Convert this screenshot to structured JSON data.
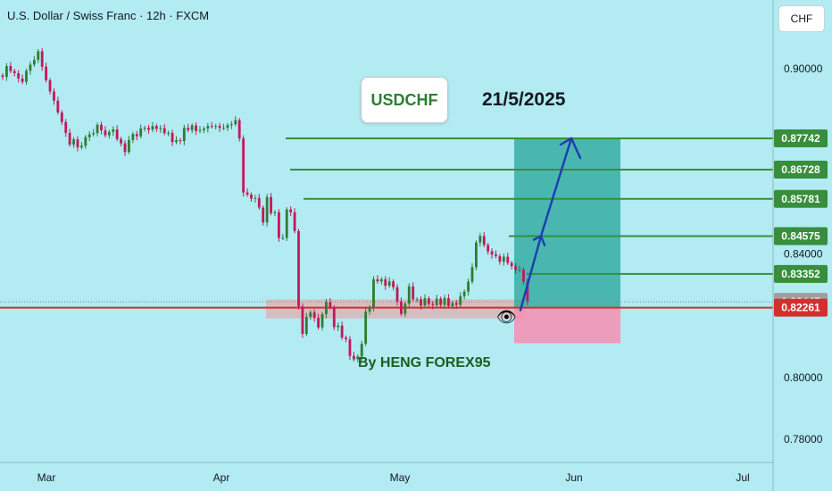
{
  "header": {
    "title": "U.S. Dollar / Swiss Franc · 12h · FXCM"
  },
  "currency_label": "CHF",
  "annotations": {
    "symbol_box": "USDCHF",
    "date": "21/5/2025",
    "author": "By HENG FOREX95",
    "eye_icon": "👁"
  },
  "colors": {
    "background": "#b2ebf2",
    "bull": "#2e7d32",
    "bear": "#c2185b",
    "target_line": "#388e3c",
    "price_line": "#d32f2f",
    "profit_zone": "#26a69a",
    "loss_zone": "#f48fb1",
    "arrow": "#1e40af",
    "current_badge": "#9e9e9e"
  },
  "chart_data": {
    "type": "candlestick",
    "title": "U.S. Dollar / Swiss Franc · 12h · FXCM",
    "x_ticks": [
      "Mar",
      "Apr",
      "May",
      "Jun",
      "Jul"
    ],
    "y_ticks": [
      "0.90000",
      "0.84000",
      "0.80000",
      "0.78000"
    ],
    "ylim": [
      0.7725,
      0.9222
    ],
    "grid": false,
    "current_price": "0.82447",
    "entry_price": "0.82261",
    "stop_price": 0.8111,
    "targets": [
      "0.87742",
      "0.86728",
      "0.85781",
      "0.84575",
      "0.83352"
    ],
    "support_zone": [
      0.8191,
      0.8253
    ],
    "closes": [
      0.8973,
      0.9008,
      0.8992,
      0.8985,
      0.8968,
      0.8957,
      0.8993,
      0.9013,
      0.9028,
      0.9056,
      0.9006,
      0.8962,
      0.8926,
      0.8896,
      0.8858,
      0.8827,
      0.8792,
      0.8754,
      0.8771,
      0.8745,
      0.875,
      0.8778,
      0.8787,
      0.8791,
      0.8818,
      0.88,
      0.8784,
      0.8795,
      0.8803,
      0.8772,
      0.8758,
      0.873,
      0.8769,
      0.8788,
      0.8781,
      0.8806,
      0.8808,
      0.8802,
      0.8814,
      0.8805,
      0.8807,
      0.8791,
      0.8792,
      0.8762,
      0.8768,
      0.8765,
      0.8808,
      0.8801,
      0.8816,
      0.8798,
      0.8801,
      0.8806,
      0.8814,
      0.8813,
      0.8814,
      0.8808,
      0.8808,
      0.8817,
      0.882,
      0.8833,
      0.8774,
      0.8599,
      0.8592,
      0.8579,
      0.8581,
      0.855,
      0.8502,
      0.8584,
      0.8532,
      0.8535,
      0.8452,
      0.8452,
      0.8544,
      0.8535,
      0.8474,
      0.823,
      0.8141,
      0.8196,
      0.8211,
      0.8193,
      0.8162,
      0.8205,
      0.8244,
      0.8227,
      0.8163,
      0.8168,
      0.8129,
      0.8124,
      0.807,
      0.8059,
      0.8068,
      0.8109,
      0.8213,
      0.8227,
      0.8318,
      0.8311,
      0.8318,
      0.8297,
      0.8311,
      0.8292,
      0.8246,
      0.8206,
      0.8239,
      0.8295,
      0.8253,
      0.8253,
      0.8233,
      0.8256,
      0.8238,
      0.8234,
      0.8255,
      0.8235,
      0.8257,
      0.8231,
      0.8241,
      0.8235,
      0.8263,
      0.8278,
      0.831,
      0.8357,
      0.8437,
      0.8458,
      0.8429,
      0.8408,
      0.8398,
      0.8393,
      0.8375,
      0.8391,
      0.8371,
      0.836,
      0.8348,
      0.8349,
      0.831,
      0.8247
    ]
  }
}
